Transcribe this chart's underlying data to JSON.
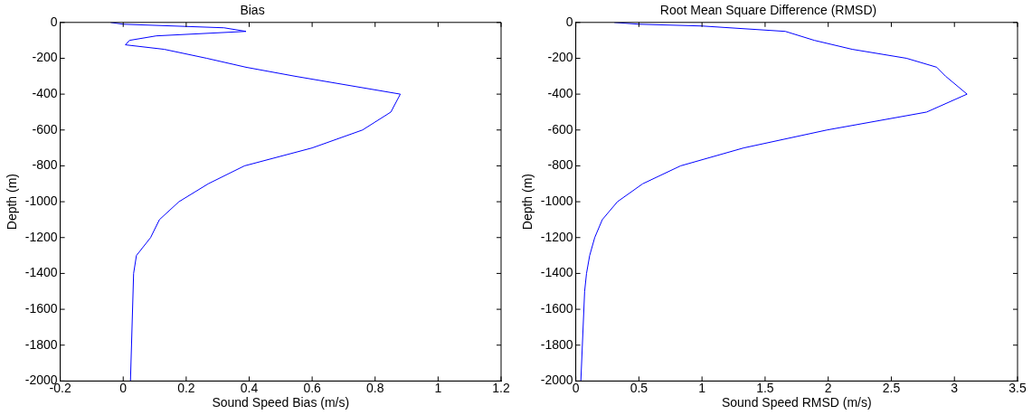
{
  "chart_data": [
    {
      "type": "line",
      "title": "Bias",
      "xlabel": "Sound Speed Bias (m/s)",
      "ylabel": "Depth (m)",
      "xlim": [
        -0.2,
        1.2
      ],
      "xticks": [
        -0.2,
        0,
        0.2,
        0.4,
        0.6,
        0.8,
        1,
        1.2
      ],
      "ylim": [
        -2000,
        0
      ],
      "yticks": [
        -2000,
        -1800,
        -1600,
        -1400,
        -1200,
        -1000,
        -800,
        -600,
        -400,
        -200,
        0
      ],
      "grid": false,
      "legend": false,
      "series": [
        {
          "color": "#0000ff",
          "x": [
            -0.04,
            0,
            0.32,
            0.39,
            0.105,
            0.02,
            0.007,
            0.13,
            0.265,
            0.39,
            0.545,
            0.88,
            0.85,
            0.76,
            0.6,
            0.385,
            0.27,
            0.177,
            0.115,
            0.087,
            0.042,
            0.033,
            0.023
          ],
          "values": [
            0,
            -10,
            -30,
            -50,
            -75,
            -100,
            -125,
            -150,
            -200,
            -250,
            -300,
            -400,
            -500,
            -600,
            -700,
            -800,
            -900,
            -1000,
            -1100,
            -1200,
            -1300,
            -1400,
            -2000
          ]
        }
      ]
    },
    {
      "type": "line",
      "title": "Root Mean Square Difference (RMSD)",
      "xlabel": "Sound Speed RMSD (m/s)",
      "ylabel": "Depth (m)",
      "xlim": [
        0,
        3.5
      ],
      "xticks": [
        0,
        0.5,
        1,
        1.5,
        2,
        2.5,
        3,
        3.5
      ],
      "ylim": [
        -2000,
        0
      ],
      "yticks": [
        -2000,
        -1800,
        -1600,
        -1400,
        -1200,
        -1000,
        -800,
        -600,
        -400,
        -200,
        0
      ],
      "grid": false,
      "legend": false,
      "series": [
        {
          "color": "#0000ff",
          "x": [
            0.305,
            0.5,
            1.0,
            1.66,
            1.89,
            2.19,
            2.62,
            2.86,
            2.93,
            3.1,
            2.78,
            1.99,
            1.33,
            0.83,
            0.53,
            0.33,
            0.21,
            0.15,
            0.11,
            0.085,
            0.07,
            0.04
          ],
          "values": [
            0,
            -10,
            -20,
            -50,
            -100,
            -150,
            -200,
            -250,
            -300,
            -400,
            -500,
            -600,
            -700,
            -800,
            -900,
            -1000,
            -1100,
            -1200,
            -1300,
            -1400,
            -1500,
            -2000
          ]
        }
      ]
    }
  ]
}
